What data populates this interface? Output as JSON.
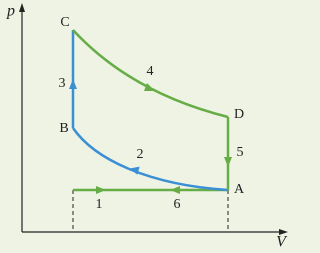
{
  "axes": {
    "y_label": "p",
    "x_label": "V"
  },
  "points": [
    "A",
    "B",
    "C",
    "D"
  ],
  "processes": [
    "1",
    "2",
    "3",
    "4",
    "5",
    "6"
  ]
}
